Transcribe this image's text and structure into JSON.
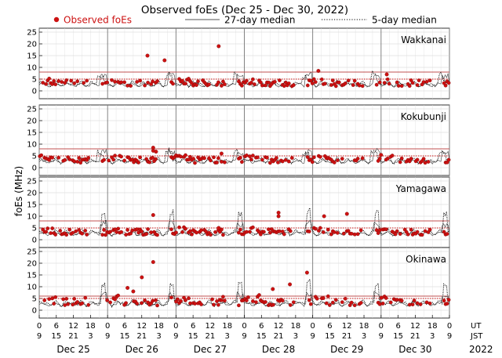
{
  "chart_data": {
    "type": "scatter",
    "title": "Observed foEs (Dec 25 - Dec 30, 2022)",
    "legend": {
      "placement": "top",
      "entries": [
        {
          "label": "Observed foEs",
          "style": "red-dot"
        },
        {
          "label": "27-day median",
          "style": "solid-line"
        },
        {
          "label": "5-day median",
          "style": "dotted-line"
        }
      ]
    },
    "ylabel": "foEs (MHz)",
    "ylim": [
      0,
      25
    ],
    "yticks": [
      "0",
      "5",
      "10",
      "15",
      "20",
      "25"
    ],
    "x_hours_range": [
      0,
      144
    ],
    "ut_ticks": [
      "0",
      "6",
      "12",
      "18",
      "0",
      "6",
      "12",
      "18",
      "0",
      "6",
      "12",
      "18",
      "0",
      "6",
      "12",
      "18",
      "0",
      "6",
      "12",
      "18",
      "0",
      "6",
      "12",
      "18",
      "0"
    ],
    "jst_ticks": [
      "9",
      "15",
      "21",
      "3",
      "9",
      "15",
      "21",
      "3",
      "9",
      "15",
      "21",
      "3",
      "9",
      "15",
      "21",
      "3",
      "9",
      "15",
      "21",
      "3",
      "9",
      "15",
      "21",
      "3",
      "9"
    ],
    "ut_label": "UT",
    "jst_label": "JST",
    "days": [
      "Dec 25",
      "Dec 26",
      "Dec 27",
      "Dec 28",
      "Dec 29",
      "Dec 30"
    ],
    "year": "2022",
    "grid": true,
    "colors": {
      "observed": "#cc1111",
      "median27": "#555555",
      "median5": "#000000",
      "threshold": "#c05050"
    },
    "panels": [
      {
        "station": "Wakkanai",
        "thresholds": [
          8,
          5
        ],
        "outliers": [
          [
            38,
            15
          ],
          [
            44,
            13
          ],
          [
            63,
            19
          ],
          [
            98,
            8.5
          ],
          [
            122,
            7
          ]
        ]
      },
      {
        "station": "Kokubunji",
        "thresholds": [
          8,
          5
        ],
        "outliers": [
          [
            40,
            8.5
          ],
          [
            40,
            7.2
          ],
          [
            41,
            6.8
          ],
          [
            64,
            6
          ],
          [
            120,
            5.4
          ]
        ]
      },
      {
        "station": "Yamagawa",
        "thresholds": [
          8,
          5
        ],
        "outliers": [
          [
            40,
            10.5
          ],
          [
            63,
            5
          ],
          [
            84,
            11.5
          ],
          [
            84,
            10
          ],
          [
            100,
            10
          ],
          [
            108,
            11
          ]
        ]
      },
      {
        "station": "Okinawa",
        "thresholds": [
          6,
          5
        ],
        "outliers": [
          [
            40,
            20.5
          ],
          [
            36,
            14
          ],
          [
            31,
            9.5
          ],
          [
            33,
            8
          ],
          [
            88,
            11
          ],
          [
            94,
            16
          ],
          [
            82,
            9
          ]
        ]
      }
    ]
  }
}
